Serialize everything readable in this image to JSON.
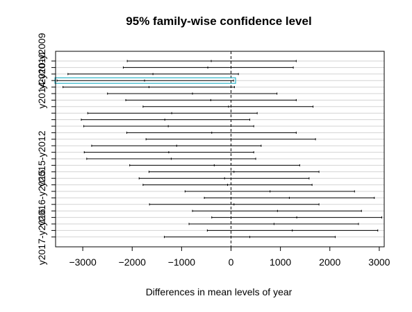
{
  "chart_data": {
    "type": "interval",
    "title": "95% family-wise confidence level",
    "xlabel": "Differences in mean levels of year",
    "xlim": [
      -3550,
      3100
    ],
    "xticks": [
      -3000,
      -2000,
      -1000,
      0,
      1000,
      2000,
      3000
    ],
    "ytick_labels": [
      "y2010-y2009",
      "y2014-y2010",
      "y2015-y2012",
      "y2016-y2015",
      "y2017-y2016"
    ],
    "highlight_color": "#2ab4c8",
    "comparisons": [
      {
        "lwr": -2100,
        "est": -400,
        "upr": 1320,
        "label": "y2010-y2009"
      },
      {
        "lwr": -2180,
        "est": -470,
        "upr": 1260,
        "label": ""
      },
      {
        "lwr": -3300,
        "est": -1580,
        "upr": 150,
        "label": ""
      },
      {
        "lwr": -3520,
        "est": -1750,
        "upr": 50,
        "label": "y2014-y2010",
        "highlight": true
      },
      {
        "lwr": -3400,
        "est": -1660,
        "upr": 70,
        "label": ""
      },
      {
        "lwr": -2500,
        "est": -780,
        "upr": 930,
        "label": ""
      },
      {
        "lwr": -2130,
        "est": -410,
        "upr": 1320,
        "label": ""
      },
      {
        "lwr": -1780,
        "est": -50,
        "upr": 1660,
        "label": ""
      },
      {
        "lwr": -2900,
        "est": -1200,
        "upr": 530,
        "label": ""
      },
      {
        "lwr": -3030,
        "est": -1340,
        "upr": 380,
        "label": ""
      },
      {
        "lwr": -2980,
        "est": -1270,
        "upr": 460,
        "label": ""
      },
      {
        "lwr": -2110,
        "est": -390,
        "upr": 1320,
        "label": ""
      },
      {
        "lwr": -1720,
        "est": 0,
        "upr": 1710,
        "label": ""
      },
      {
        "lwr": -2820,
        "est": -1100,
        "upr": 610,
        "label": ""
      },
      {
        "lwr": -2970,
        "est": -1260,
        "upr": 460,
        "label": ""
      },
      {
        "lwr": -2920,
        "est": -1210,
        "upr": 500,
        "label": "y2015-y2012"
      },
      {
        "lwr": -2050,
        "est": -340,
        "upr": 1390,
        "label": ""
      },
      {
        "lwr": -1660,
        "est": 60,
        "upr": 1780,
        "label": ""
      },
      {
        "lwr": -1860,
        "est": -130,
        "upr": 1580,
        "label": ""
      },
      {
        "lwr": -1780,
        "est": -70,
        "upr": 1640,
        "label": ""
      },
      {
        "lwr": -930,
        "est": 790,
        "upr": 2500,
        "label": ""
      },
      {
        "lwr": -540,
        "est": 1180,
        "upr": 2900,
        "label": "y2016-y2015"
      },
      {
        "lwr": -1650,
        "est": 60,
        "upr": 1780,
        "label": ""
      },
      {
        "lwr": -780,
        "est": 940,
        "upr": 2640,
        "label": ""
      },
      {
        "lwr": -390,
        "est": 1330,
        "upr": 3050,
        "label": ""
      },
      {
        "lwr": -850,
        "est": 870,
        "upr": 2580,
        "label": ""
      },
      {
        "lwr": -480,
        "est": 1240,
        "upr": 2970,
        "label": ""
      },
      {
        "lwr": -1350,
        "est": 380,
        "upr": 2110,
        "label": "y2017-y2016"
      }
    ]
  }
}
